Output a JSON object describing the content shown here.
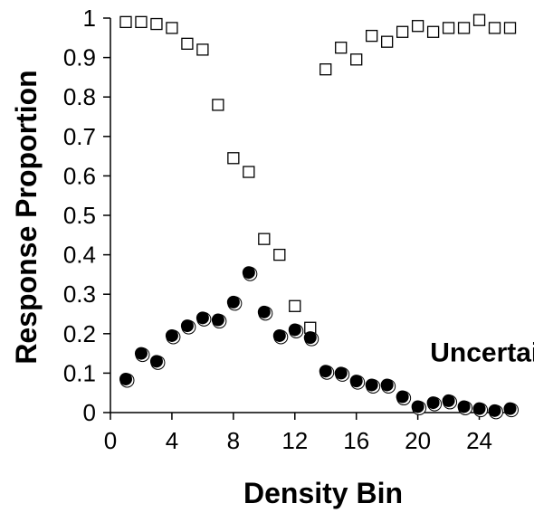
{
  "chart_data": {
    "type": "scatter",
    "xlabel": "Density Bin",
    "ylabel": "Response Proportion",
    "xlim": [
      0,
      26.5
    ],
    "ylim": [
      0,
      1
    ],
    "xticks": [
      0,
      4,
      8,
      12,
      16,
      20,
      24
    ],
    "yticks": [
      0,
      0.1,
      0.2,
      0.3,
      0.4,
      0.5,
      0.6,
      0.7,
      0.8,
      0.9,
      1
    ],
    "ytick_labels": [
      "0",
      "0.1",
      "0.2",
      "0.3",
      "0.4",
      "0.5",
      "0.6",
      "0.7",
      "0.8",
      "0.9",
      "1"
    ],
    "grid": false,
    "annotations": [
      {
        "text": "Uncertain",
        "x": 20.8,
        "y": 0.155
      }
    ],
    "series": [
      {
        "marker": "open-square",
        "color": "#000000",
        "x": [
          1,
          2,
          3,
          4,
          5,
          6,
          7,
          8,
          9,
          10,
          11,
          12,
          13,
          14,
          15,
          16,
          17,
          18,
          19,
          20,
          21,
          22,
          23,
          24,
          25,
          26
        ],
        "values": [
          0.99,
          0.99,
          0.985,
          0.975,
          0.935,
          0.92,
          0.78,
          0.645,
          0.61,
          0.44,
          0.4,
          0.27,
          0.215,
          0.87,
          0.925,
          0.895,
          0.955,
          0.94,
          0.965,
          0.98,
          0.965,
          0.975,
          0.975,
          0.995,
          0.975,
          0.975
        ]
      },
      {
        "marker": "filled-circle",
        "color": "#000000",
        "x": [
          1,
          2,
          3,
          4,
          5,
          6,
          7,
          8,
          9,
          10,
          11,
          12,
          13,
          14,
          15,
          16,
          17,
          18,
          19,
          20,
          21,
          22,
          23,
          24,
          25,
          26
        ],
        "values": [
          0.085,
          0.15,
          0.13,
          0.195,
          0.22,
          0.24,
          0.235,
          0.28,
          0.355,
          0.255,
          0.195,
          0.21,
          0.19,
          0.105,
          0.1,
          0.08,
          0.07,
          0.07,
          0.04,
          0.015,
          0.025,
          0.03,
          0.015,
          0.01,
          0.005,
          0.01
        ]
      }
    ]
  }
}
